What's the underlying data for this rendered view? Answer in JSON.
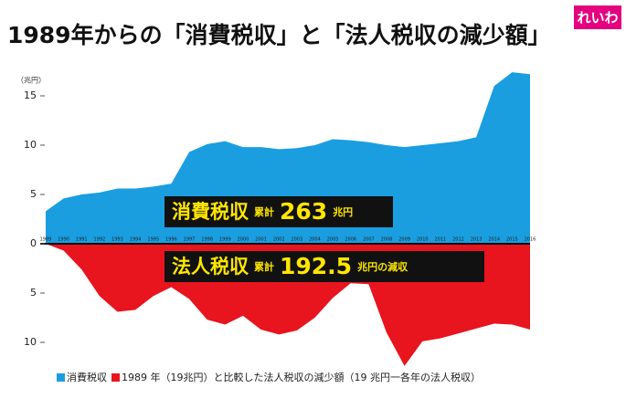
{
  "chart_data": {
    "type": "area",
    "title": "1989年からの「消費税収」と「法人税収の減少額」",
    "logo": "れいわ",
    "y_unit": "（兆円）",
    "categories": [
      "1989",
      "1990",
      "1991",
      "1992",
      "1993",
      "1994",
      "1995",
      "1996",
      "1997",
      "1998",
      "1999",
      "2000",
      "2001",
      "2002",
      "2003",
      "2004",
      "2005",
      "2006",
      "2007",
      "2008",
      "2009",
      "2010",
      "2011",
      "2012",
      "2013",
      "2014",
      "2015",
      "2016"
    ],
    "series": [
      {
        "name": "消費税収",
        "color": "#1a9ee0",
        "values": [
          3.3,
          4.6,
          5.0,
          5.2,
          5.6,
          5.6,
          5.8,
          6.1,
          9.3,
          10.1,
          10.4,
          9.8,
          9.8,
          9.6,
          9.7,
          10.0,
          10.6,
          10.5,
          10.3,
          10.0,
          9.8,
          10.0,
          10.2,
          10.4,
          10.8,
          16.0,
          17.4,
          17.2
        ]
      },
      {
        "name": "1989 年（19兆円）と比較した法人税収の減少額（19 兆円一各年の法人税収）",
        "color": "#e8141e",
        "values": [
          0,
          -0.7,
          -2.6,
          -5.3,
          -6.9,
          -6.7,
          -5.3,
          -4.4,
          -5.6,
          -7.7,
          -8.2,
          -7.3,
          -8.7,
          -9.2,
          -8.8,
          -7.5,
          -5.5,
          -4.0,
          -4.1,
          -9.0,
          -12.4,
          -9.9,
          -9.6,
          -9.1,
          -8.6,
          -8.1,
          -8.2,
          -8.7
        ]
      }
    ],
    "annotations": [
      {
        "parts": [
          "消費税収",
          "累計",
          "263",
          "兆円"
        ]
      },
      {
        "parts": [
          "法人税収",
          "累計",
          "192.5",
          "兆円の減収"
        ]
      }
    ],
    "ylim": [
      -12.5,
      17.5
    ],
    "yticks": [
      15,
      10,
      5,
      0,
      {
        "value": -5,
        "label": "5"
      },
      {
        "value": -10,
        "label": "10"
      }
    ]
  }
}
